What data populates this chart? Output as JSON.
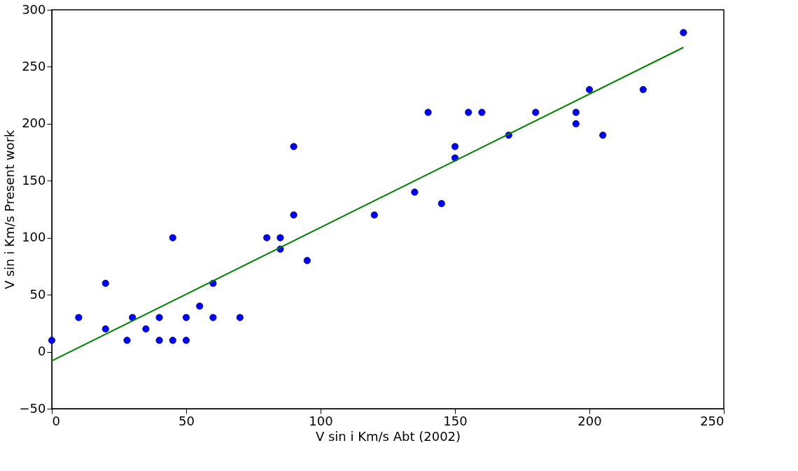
{
  "chart_data": {
    "type": "scatter",
    "xlabel": "V sin i Km/s Abt (2002)",
    "ylabel": "V sin i Km/s Present work",
    "xlim": [
      0,
      250
    ],
    "xticks": [
      0,
      50,
      100,
      150,
      200,
      250
    ],
    "ylim": [
      -50,
      300
    ],
    "yticks": [
      {
        "value": -50,
        "label": "−50"
      },
      0,
      50,
      100,
      150,
      200,
      250,
      300
    ],
    "grid": false,
    "series": [
      {
        "color": "#0000ff",
        "marker": "circle",
        "x": [
          0,
          10,
          20,
          20,
          28,
          30,
          35,
          40,
          40,
          45,
          45,
          50,
          50,
          55,
          60,
          60,
          70,
          80,
          85,
          85,
          90,
          90,
          95,
          120,
          135,
          140,
          145,
          150,
          150,
          155,
          160,
          170,
          180,
          195,
          195,
          200,
          205,
          220,
          235
        ],
        "values": [
          10,
          30,
          60,
          20,
          10,
          30,
          20,
          30,
          10,
          100,
          10,
          30,
          10,
          40,
          60,
          30,
          30,
          100,
          100,
          90,
          180,
          120,
          80,
          120,
          140,
          210,
          130,
          180,
          170,
          210,
          210,
          190,
          210,
          210,
          200,
          230,
          190,
          230,
          280
        ]
      },
      {
        "type": "line",
        "color": "#008000",
        "x": [
          0,
          235
        ],
        "values": [
          -8,
          267
        ]
      }
    ]
  }
}
